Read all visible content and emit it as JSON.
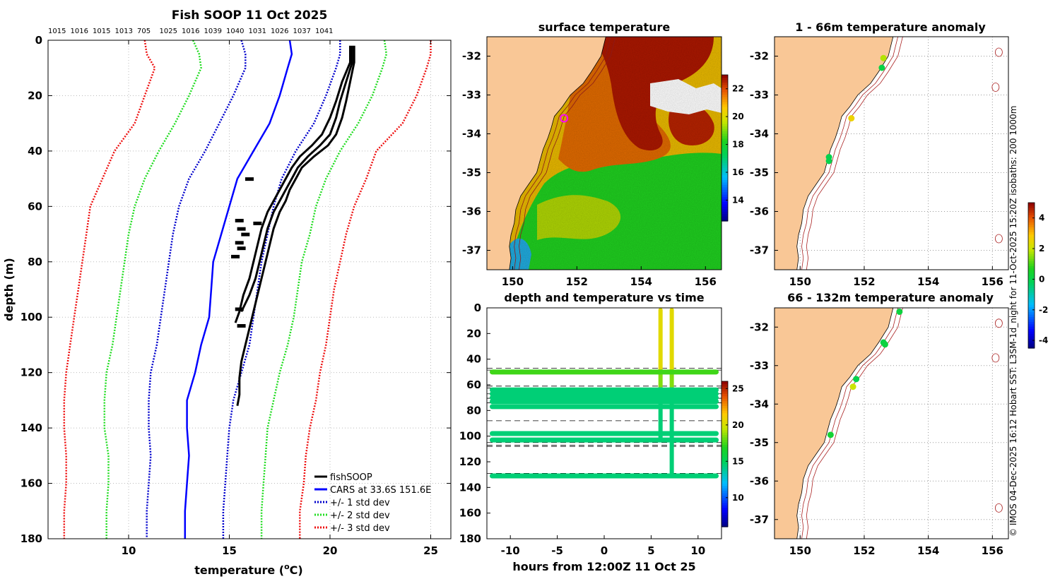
{
  "credit": "© IMOS 04-Dec-2025 16:12 Hobart SST: L3SM-1d_night for 11-Oct-2025 15:20Z isobaths: 200  1000m",
  "colors": {
    "fish": "#000000",
    "cars": "#0000ff",
    "sd1": "#0000cc",
    "sd2": "#22dd22",
    "sd3": "#ee1111",
    "land": "#f9c796",
    "isobath": "#aa2222"
  },
  "chart_data": [
    {
      "id": "profile",
      "type": "line",
      "title": "Fish SOOP 11 Oct 2025",
      "xlabel": "temperature (",
      "xlabel_sup": "o",
      "xlabel_end": "C)",
      "ylabel": "depth (m)",
      "xlim": [
        6,
        26
      ],
      "ylim": [
        0,
        180
      ],
      "xticks": [
        "10",
        "15",
        "20",
        "25"
      ],
      "yticks": [
        "0",
        "20",
        "40",
        "60",
        "80",
        "100",
        "120",
        "140",
        "160",
        "180"
      ],
      "top_counts": [
        "1015",
        "1016",
        "1015",
        "1013",
        "705",
        "1025",
        "1016",
        "1039",
        "1040",
        "1031",
        "1026",
        "1037",
        "1041"
      ],
      "legend": [
        "fishSOOP",
        "CARS at 33.6S 151.6E",
        "+/- 1 std dev",
        "+/- 2 std dev",
        "+/- 3 std dev"
      ],
      "depths": [
        0,
        5,
        10,
        20,
        30,
        40,
        50,
        60,
        70,
        80,
        90,
        100,
        110,
        120,
        130,
        140,
        150,
        160,
        170,
        180
      ],
      "cars": [
        18.0,
        18.1,
        17.9,
        17.5,
        17.0,
        16.2,
        15.4,
        15.0,
        14.6,
        14.2,
        14.1,
        14.0,
        13.6,
        13.3,
        12.9,
        12.9,
        13.0,
        12.9,
        12.8,
        12.8
      ],
      "sd1_low": [
        15.6,
        15.8,
        15.8,
        15.2,
        14.5,
        13.8,
        13.0,
        12.5,
        12.2,
        12.0,
        11.8,
        11.6,
        11.4,
        11.1,
        11.0,
        11.0,
        11.1,
        11.0,
        10.9,
        10.9
      ],
      "sd1_high": [
        20.5,
        20.5,
        20.3,
        19.8,
        19.2,
        18.3,
        17.6,
        17.2,
        16.9,
        16.6,
        16.4,
        16.2,
        16.0,
        15.6,
        15.2,
        15.0,
        14.9,
        14.8,
        14.7,
        14.7
      ],
      "sd2_low": [
        13.2,
        13.5,
        13.6,
        13.0,
        12.3,
        11.5,
        10.8,
        10.3,
        10.0,
        9.8,
        9.6,
        9.4,
        9.2,
        8.9,
        8.8,
        8.8,
        9.0,
        9.0,
        8.9,
        8.9
      ],
      "sd2_high": [
        22.7,
        22.8,
        22.6,
        22.1,
        21.4,
        20.5,
        19.8,
        19.3,
        19.0,
        18.6,
        18.4,
        18.2,
        17.9,
        17.5,
        17.2,
        16.9,
        16.8,
        16.7,
        16.6,
        16.6
      ],
      "sd3_low": [
        10.8,
        10.9,
        11.3,
        10.8,
        10.3,
        9.3,
        8.7,
        8.1,
        7.9,
        7.7,
        7.5,
        7.3,
        7.1,
        6.9,
        6.8,
        6.8,
        6.9,
        6.9,
        6.8,
        6.8
      ],
      "sd3_high": [
        25.0,
        25.0,
        24.8,
        24.3,
        23.6,
        22.3,
        21.8,
        21.2,
        20.8,
        20.5,
        20.2,
        20.0,
        19.8,
        19.5,
        19.3,
        19.0,
        18.8,
        18.7,
        18.5,
        18.5
      ],
      "fish_profiles": [
        {
          "d": [
            2,
            8,
            15,
            22,
            28,
            34,
            38,
            42,
            46,
            50,
            54,
            58,
            62,
            68,
            74,
            80,
            86,
            92,
            98,
            104,
            110,
            116,
            122,
            128,
            132
          ],
          "t": [
            21.2,
            21.2,
            21.0,
            20.8,
            20.6,
            20.3,
            19.9,
            19.2,
            18.6,
            18.3,
            18.0,
            17.8,
            17.5,
            17.2,
            17.0,
            16.8,
            16.6,
            16.4,
            16.2,
            16.0,
            15.8,
            15.6,
            15.5,
            15.5,
            15.4
          ]
        },
        {
          "d": [
            2,
            8,
            15,
            22,
            28,
            34,
            38,
            42,
            46,
            50,
            54,
            58,
            62,
            68,
            74,
            80,
            86,
            92,
            98
          ],
          "t": [
            21.1,
            21.1,
            20.8,
            20.5,
            20.3,
            20.0,
            19.5,
            18.9,
            18.4,
            18.1,
            17.8,
            17.5,
            17.2,
            16.9,
            16.7,
            16.5,
            16.3,
            16.0,
            15.6
          ]
        },
        {
          "d": [
            2,
            8,
            15,
            22,
            28,
            34,
            38,
            42,
            46,
            50,
            54,
            58,
            62,
            68,
            74,
            80,
            86,
            92,
            98,
            102
          ],
          "t": [
            21.0,
            21.0,
            20.6,
            20.3,
            20.0,
            19.6,
            19.1,
            18.5,
            18.1,
            17.8,
            17.5,
            17.2,
            16.9,
            16.6,
            16.4,
            16.2,
            16.0,
            15.7,
            15.5,
            15.3
          ]
        }
      ],
      "fish_blobs": [
        [
          16.0,
          50
        ],
        [
          15.5,
          65
        ],
        [
          16.4,
          66
        ],
        [
          15.6,
          68
        ],
        [
          15.8,
          70
        ],
        [
          15.5,
          73
        ],
        [
          15.6,
          75
        ],
        [
          15.3,
          78
        ],
        [
          15.5,
          97
        ],
        [
          15.6,
          103
        ]
      ]
    },
    {
      "id": "sst_map",
      "type": "heatmap",
      "title": "surface temperature",
      "xlim": [
        149.2,
        156.5
      ],
      "ylim": [
        -37.5,
        -31.5
      ],
      "xticks": [
        "150",
        "152",
        "154",
        "156"
      ],
      "yticks": [
        "-32",
        "-33",
        "-34",
        "-35",
        "-36",
        "-37"
      ],
      "colorbar_ticks": [
        "14",
        "16",
        "18",
        "20",
        "22"
      ],
      "colorbar_range": [
        12.5,
        23
      ],
      "marker": [
        151.6,
        -33.6
      ]
    },
    {
      "id": "depth_time",
      "type": "scatter",
      "title": "depth and temperature vs time",
      "xlabel": "hours from 12:00Z 11 Oct 25",
      "xlim": [
        -12.5,
        12.5
      ],
      "ylim": [
        0,
        180
      ],
      "xticks": [
        "-10",
        "-5",
        "0",
        "5",
        "10"
      ],
      "yticks": [
        "0",
        "20",
        "40",
        "60",
        "80",
        "100",
        "120",
        "140",
        "160",
        "180"
      ],
      "colorbar_ticks": [
        "10",
        "15",
        "20",
        "25"
      ],
      "colorbar_range": [
        6,
        26
      ],
      "horizontal_tracks": [
        [
          50,
          17.5
        ],
        [
          64,
          14.5
        ],
        [
          67,
          14.5
        ],
        [
          70,
          14.5
        ],
        [
          73,
          14.5
        ],
        [
          77,
          14.5
        ],
        [
          98,
          14.5
        ],
        [
          103,
          14.5
        ],
        [
          131,
          14.5
        ]
      ],
      "dashed_depths": [
        47,
        48.5,
        61,
        62.5,
        67,
        70.5,
        74,
        88,
        105,
        107,
        108,
        129
      ],
      "vertical_casts": [
        6,
        7.2
      ]
    },
    {
      "id": "anom_shallow",
      "type": "scatter",
      "title": "1 - 66m temperature anomaly",
      "xlim": [
        149.2,
        156.5
      ],
      "ylim": [
        -37.5,
        -31.5
      ],
      "xticks": [
        "150",
        "152",
        "154",
        "156"
      ],
      "yticks": [
        "-32",
        "-33",
        "-34",
        "-35",
        "-36",
        "-37"
      ],
      "points": [
        [
          152.6,
          -32.05,
          1.8
        ],
        [
          152.55,
          -32.3,
          0.1
        ],
        [
          151.6,
          -33.6,
          2.6
        ],
        [
          150.9,
          -34.6,
          0.0
        ],
        [
          150.9,
          -34.7,
          0.0
        ]
      ]
    },
    {
      "id": "anom_deep",
      "type": "scatter",
      "title": "66 - 132m temperature anomaly",
      "xlim": [
        149.2,
        156.5
      ],
      "ylim": [
        -37.5,
        -31.5
      ],
      "xticks": [
        "150",
        "152",
        "154",
        "156"
      ],
      "yticks": [
        "-32",
        "-33",
        "-34",
        "-35",
        "-36",
        "-37"
      ],
      "points": [
        [
          153.1,
          -31.6,
          0.2
        ],
        [
          152.6,
          -32.4,
          0.1
        ],
        [
          152.65,
          -32.45,
          0.2
        ],
        [
          151.75,
          -33.35,
          0.0
        ],
        [
          151.65,
          -33.55,
          2.0
        ],
        [
          150.95,
          -34.8,
          0.4
        ]
      ]
    },
    {
      "id": "anom_colorbar",
      "type": "heatmap",
      "colorbar_ticks": [
        "4",
        "2",
        "0",
        "-2",
        "-4"
      ],
      "colorbar_range": [
        -4.5,
        5
      ]
    }
  ]
}
